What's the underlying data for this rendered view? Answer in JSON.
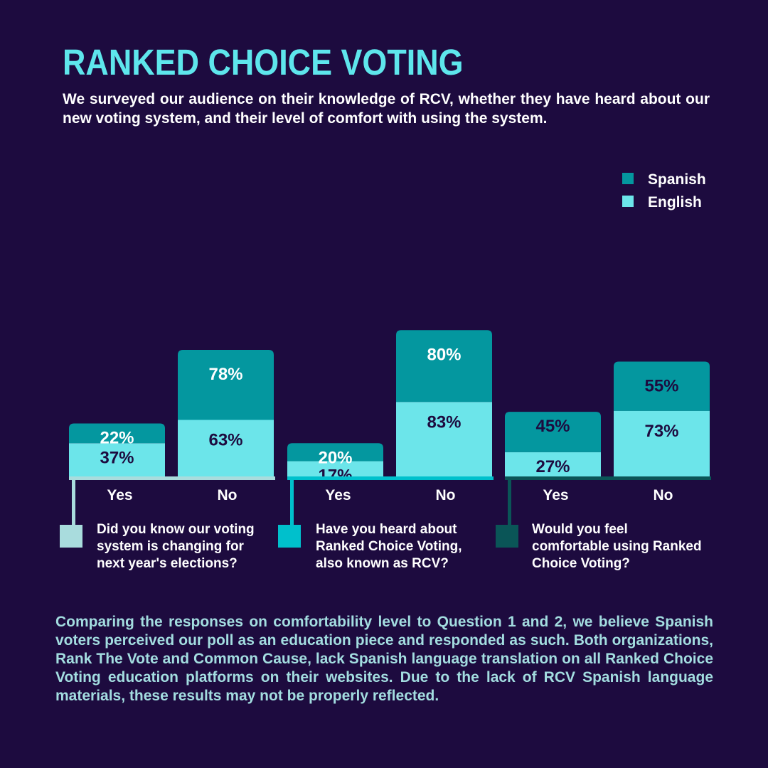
{
  "title": "RANKED CHOICE VOTING",
  "subtitle": "We surveyed our audience on their knowledge of RCV, whether they have heard about our new voting system, and their level of comfort with using the system.",
  "footnote": "Comparing the responses on comfortability level to Question 1 and 2, we believe Spanish voters perceived our poll as an education piece and responded as such. Both organizations, Rank The Vote and Common Cause, lack Spanish language translation on all Ranked Choice Voting education platforms on their websites. Due to the lack of RCV Spanish language materials, these results may not be properly reflected.",
  "colors": {
    "background": "#1d0b3f",
    "spanish": "#04979f",
    "english": "#6ce5ea",
    "label_on_spanish_dark": "#1d0b3f",
    "label_on_spanish_light": "#ffffff",
    "q1_marker": "#a9dcdd",
    "q2_marker": "#00c0cc",
    "q3_marker": "#0a5557"
  },
  "chart_data": {
    "type": "bar",
    "stacked": true,
    "legend_position": "top-right",
    "series": [
      {
        "name": "Spanish",
        "color": "#04979f"
      },
      {
        "name": "English",
        "color": "#6ce5ea"
      }
    ],
    "groups": [
      {
        "question": "Did you know our voting system is changing for next year's elections?",
        "marker_color": "#a9dcdd",
        "bars": [
          {
            "category": "Yes",
            "english": 37,
            "spanish": 22,
            "english_label": "37%",
            "spanish_label": "22%"
          },
          {
            "category": "No",
            "english": 63,
            "spanish": 78,
            "english_label": "63%",
            "spanish_label": "78%"
          }
        ]
      },
      {
        "question": "Have you heard about Ranked Choice Voting, also known as RCV?",
        "marker_color": "#00c0cc",
        "bars": [
          {
            "category": "Yes",
            "english": 17,
            "spanish": 20,
            "english_label": "17%",
            "spanish_label": "20%"
          },
          {
            "category": "No",
            "english": 83,
            "spanish": 80,
            "english_label": "83%",
            "spanish_label": "80%"
          }
        ]
      },
      {
        "question": "Would you feel comfortable using Ranked Choice Voting?",
        "marker_color": "#0a5557",
        "bars": [
          {
            "category": "Yes",
            "english": 27,
            "spanish": 45,
            "english_label": "27%",
            "spanish_label": "45%"
          },
          {
            "category": "No",
            "english": 73,
            "spanish": 55,
            "english_label": "73%",
            "spanish_label": "55%"
          }
        ]
      }
    ]
  }
}
